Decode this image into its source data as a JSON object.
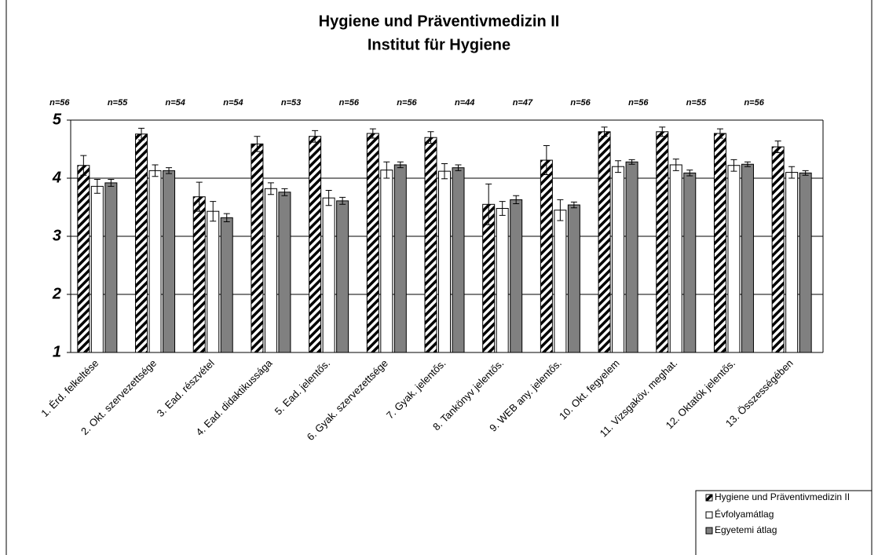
{
  "chart_data": {
    "type": "bar",
    "title": "Hygiene und Präventivmedizin II",
    "subtitle": "Institut für Hygiene",
    "categories": [
      "1. Érd. felkeltése",
      "2. Okt. szervezettsége",
      "3. Ead. részvétel",
      "4. Ead. didaktikussága",
      "5. Ead. jelentős.",
      "6. Gyak. szervezettsége",
      "7. Gyak. jelentős.",
      "8. Tankönyv jelentős.",
      "9. WEB any. jelentős.",
      "10. Okt. fegyelem",
      "11. Vizsgaköv. meghat.",
      "12. Oktatók jelentős.",
      "13. Összességében"
    ],
    "annotations": [
      "n=56",
      "n=55",
      "n=54",
      "n=54",
      "n=53",
      "n=56",
      "n=56",
      "n=44",
      "n=47",
      "n=56",
      "n=56",
      "n=55",
      "n=56"
    ],
    "series": [
      {
        "name": "Hygiene und Präventivmedizin II",
        "color": "#000000",
        "pattern": "diagonal",
        "values": [
          4.22,
          4.76,
          3.68,
          4.59,
          4.72,
          4.77,
          4.7,
          3.55,
          4.31,
          4.8,
          4.8,
          4.77,
          4.54
        ],
        "errors": [
          0.17,
          0.1,
          0.25,
          0.13,
          0.1,
          0.08,
          0.1,
          0.35,
          0.25,
          0.08,
          0.08,
          0.08,
          0.1
        ]
      },
      {
        "name": "Évfolyamátlag",
        "color": "#ffffff",
        "values": [
          3.86,
          4.13,
          3.43,
          3.82,
          3.66,
          4.14,
          4.12,
          3.48,
          3.45,
          4.2,
          4.23,
          4.22,
          4.1
        ],
        "errors": [
          0.12,
          0.1,
          0.17,
          0.1,
          0.13,
          0.14,
          0.13,
          0.12,
          0.18,
          0.1,
          0.1,
          0.1,
          0.1
        ]
      },
      {
        "name": "Egyetemi átlag",
        "color": "#808080",
        "values": [
          3.92,
          4.13,
          3.32,
          3.76,
          3.61,
          4.23,
          4.18,
          3.63,
          3.54,
          4.28,
          4.09,
          4.24,
          4.09
        ],
        "errors": [
          0.06,
          0.05,
          0.07,
          0.06,
          0.06,
          0.05,
          0.05,
          0.07,
          0.05,
          0.04,
          0.05,
          0.04,
          0.04
        ]
      }
    ],
    "ylim": [
      1,
      5
    ],
    "yticks": [
      1,
      2,
      3,
      4,
      5
    ],
    "grid": true,
    "legend": "bottom-right"
  }
}
